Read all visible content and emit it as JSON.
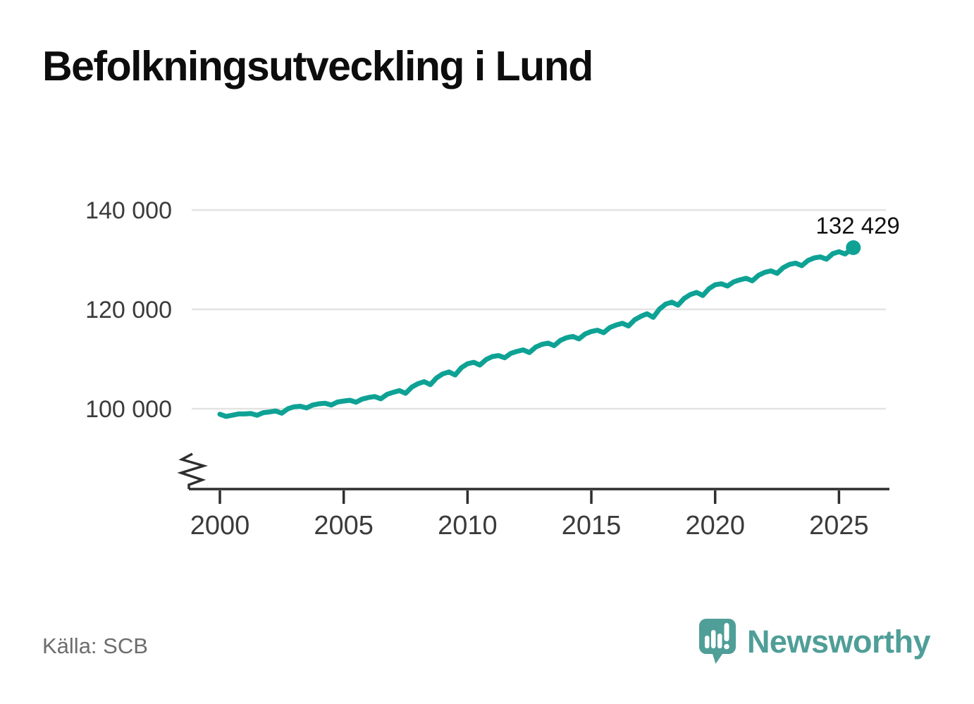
{
  "header": {
    "title": "Befolkningsutveckling i Lund"
  },
  "footer": {
    "source": "Källa: SCB",
    "brand": {
      "name": "Newsworthy",
      "icon": "newsworthy-speech-bubble-bar-chart-icon"
    }
  },
  "colors": {
    "line": "#0ea295",
    "end_dot": "#0ea295",
    "brand": "#4f9e98",
    "grid": "#e3e3e3",
    "axis": "#2e2e2e",
    "tick_text": "#3b3b3b",
    "annotation_text": "#111111",
    "source_text": "#6d6d6d",
    "title_text": "#0d0d0d"
  },
  "chart_data": {
    "type": "line",
    "title": "Befolkningsutveckling i Lund",
    "xlabel": "",
    "ylabel": "",
    "grid": "horizontal-only",
    "axis_break_on_y": true,
    "xlim": [
      1998.85,
      2027.0
    ],
    "ylim": [
      96500,
      143500
    ],
    "x_ticks": [
      2000,
      2005,
      2010,
      2015,
      2020,
      2025
    ],
    "x_tick_labels": [
      "2000",
      "2005",
      "2010",
      "2015",
      "2020",
      "2025"
    ],
    "y_ticks": [
      100000,
      120000,
      140000
    ],
    "y_tick_labels": [
      "100 000",
      "120 000",
      "140 000"
    ],
    "annotation": {
      "last_value_label": "132 429",
      "last_value": 132429
    },
    "series": [
      {
        "points": [
          [
            2000.0,
            98900
          ],
          [
            2000.25,
            98450
          ],
          [
            2000.5,
            98700
          ],
          [
            2000.75,
            98950
          ],
          [
            2001.0,
            98950
          ],
          [
            2001.25,
            99050
          ],
          [
            2001.5,
            98700
          ],
          [
            2001.75,
            99200
          ],
          [
            2002.0,
            99350
          ],
          [
            2002.25,
            99550
          ],
          [
            2002.5,
            99100
          ],
          [
            2002.75,
            100000
          ],
          [
            2003.0,
            100400
          ],
          [
            2003.25,
            100500
          ],
          [
            2003.5,
            100150
          ],
          [
            2003.75,
            100750
          ],
          [
            2004.0,
            101000
          ],
          [
            2004.25,
            101100
          ],
          [
            2004.5,
            100750
          ],
          [
            2004.75,
            101350
          ],
          [
            2005.0,
            101550
          ],
          [
            2005.25,
            101700
          ],
          [
            2005.5,
            101300
          ],
          [
            2005.75,
            101950
          ],
          [
            2006.0,
            102250
          ],
          [
            2006.25,
            102450
          ],
          [
            2006.5,
            102000
          ],
          [
            2006.75,
            102900
          ],
          [
            2007.0,
            103300
          ],
          [
            2007.25,
            103650
          ],
          [
            2007.5,
            103100
          ],
          [
            2007.75,
            104350
          ],
          [
            2008.0,
            105050
          ],
          [
            2008.25,
            105450
          ],
          [
            2008.5,
            104850
          ],
          [
            2008.75,
            106200
          ],
          [
            2009.0,
            107000
          ],
          [
            2009.25,
            107400
          ],
          [
            2009.5,
            106800
          ],
          [
            2009.75,
            108250
          ],
          [
            2010.0,
            109050
          ],
          [
            2010.25,
            109350
          ],
          [
            2010.5,
            108800
          ],
          [
            2010.75,
            109900
          ],
          [
            2011.0,
            110500
          ],
          [
            2011.25,
            110700
          ],
          [
            2011.5,
            110250
          ],
          [
            2011.75,
            111150
          ],
          [
            2012.0,
            111550
          ],
          [
            2012.25,
            111850
          ],
          [
            2012.5,
            111300
          ],
          [
            2012.75,
            112400
          ],
          [
            2013.0,
            112950
          ],
          [
            2013.25,
            113200
          ],
          [
            2013.5,
            112700
          ],
          [
            2013.75,
            113750
          ],
          [
            2014.0,
            114300
          ],
          [
            2014.25,
            114550
          ],
          [
            2014.5,
            114050
          ],
          [
            2014.75,
            115050
          ],
          [
            2015.0,
            115550
          ],
          [
            2015.25,
            115800
          ],
          [
            2015.5,
            115300
          ],
          [
            2015.75,
            116350
          ],
          [
            2016.0,
            116850
          ],
          [
            2016.25,
            117200
          ],
          [
            2016.5,
            116650
          ],
          [
            2016.75,
            117900
          ],
          [
            2017.0,
            118600
          ],
          [
            2017.25,
            119100
          ],
          [
            2017.5,
            118400
          ],
          [
            2017.75,
            120050
          ],
          [
            2018.0,
            121050
          ],
          [
            2018.25,
            121450
          ],
          [
            2018.5,
            120850
          ],
          [
            2018.75,
            122200
          ],
          [
            2019.0,
            123000
          ],
          [
            2019.25,
            123400
          ],
          [
            2019.5,
            122800
          ],
          [
            2019.75,
            124150
          ],
          [
            2020.0,
            124950
          ],
          [
            2020.25,
            125150
          ],
          [
            2020.5,
            124700
          ],
          [
            2020.75,
            125550
          ],
          [
            2021.0,
            125950
          ],
          [
            2021.25,
            126250
          ],
          [
            2021.5,
            125750
          ],
          [
            2021.75,
            126850
          ],
          [
            2022.0,
            127450
          ],
          [
            2022.25,
            127750
          ],
          [
            2022.5,
            127250
          ],
          [
            2022.75,
            128400
          ],
          [
            2023.0,
            129050
          ],
          [
            2023.25,
            129300
          ],
          [
            2023.5,
            128800
          ],
          [
            2023.75,
            129850
          ],
          [
            2024.0,
            130350
          ],
          [
            2024.25,
            130550
          ],
          [
            2024.5,
            130100
          ],
          [
            2024.75,
            131200
          ],
          [
            2025.0,
            131600
          ],
          [
            2025.25,
            131150
          ],
          [
            2025.58,
            132429
          ]
        ]
      }
    ]
  }
}
